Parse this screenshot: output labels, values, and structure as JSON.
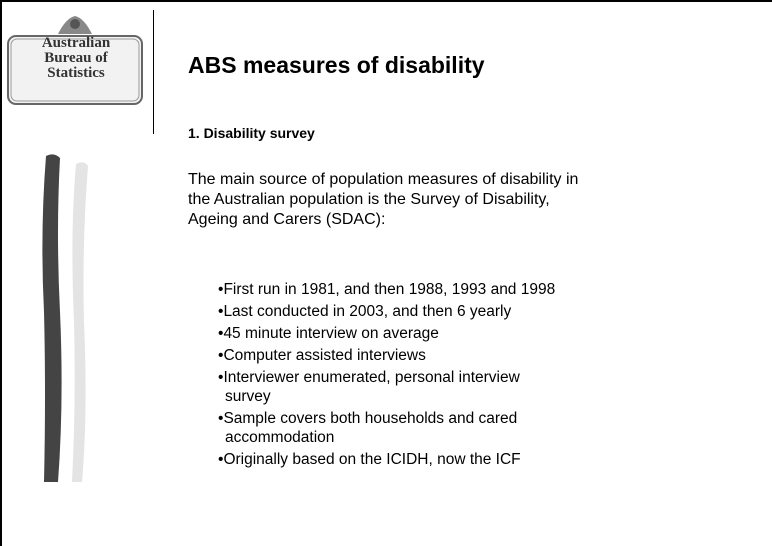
{
  "logo": {
    "lines": [
      "Australian",
      "Bureau of",
      "Statistics"
    ]
  },
  "title": "ABS measures of disability",
  "section": "1.  Disability survey",
  "paragraph": "The main source of population measures of disability in the Australian population is the Survey of Disability, Ageing and Carers (SDAC):",
  "bullets": [
    "First run in 1981, and then 1988, 1993 and 1998",
    "Last conducted in 2003, and then 6 yearly",
    "45 minute interview on average",
    "Computer assisted interviews",
    "Interviewer enumerated, personal interview survey",
    "Sample covers both households and cared accommodation",
    "Originally based on the ICIDH, now the ICF"
  ]
}
